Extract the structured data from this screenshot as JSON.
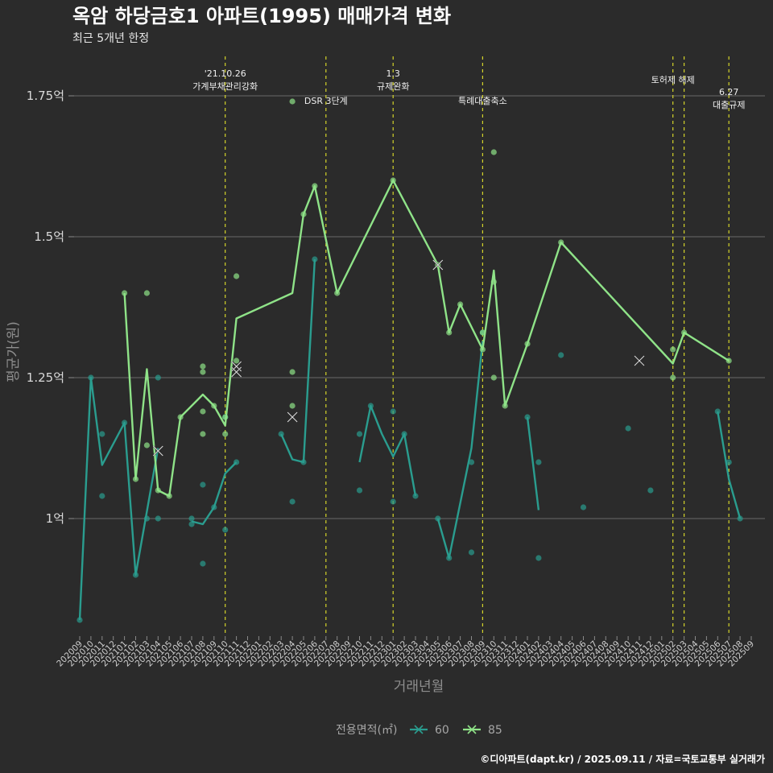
{
  "chart_data": {
    "type": "line",
    "title": "옥암 하당금호1 아파트(1995) 매매가격 변화",
    "subtitle": "최근 5개년 한정",
    "xlabel": "거래년월",
    "ylabel": "평균가(원)",
    "caption": "©디아파트(dapt.kr) / 2025.09.11 / 자료=국토교통부 실거래가",
    "legend_title": "전용면적(㎡)",
    "legend_position": "bottom",
    "grid": "horizontal",
    "ylim": [
      0.78,
      1.82
    ],
    "yticks": [
      {
        "value": 1.0,
        "label": "1억"
      },
      {
        "value": 1.25,
        "label": "1.25억"
      },
      {
        "value": 1.5,
        "label": "1.5억"
      },
      {
        "value": 1.75,
        "label": "1.75억"
      }
    ],
    "x_months": [
      "202009",
      "202010",
      "202011",
      "202012",
      "202101",
      "202102",
      "202103",
      "202104",
      "202105",
      "202106",
      "202107",
      "202108",
      "202109",
      "202110",
      "202111",
      "202112",
      "202201",
      "202202",
      "202203",
      "202204",
      "202205",
      "202206",
      "202207",
      "202208",
      "202209",
      "202210",
      "202211",
      "202212",
      "202301",
      "202302",
      "202303",
      "202304",
      "202305",
      "202306",
      "202307",
      "202308",
      "202309",
      "202310",
      "202311",
      "202312",
      "202401",
      "202402",
      "202403",
      "202404",
      "202405",
      "202406",
      "202407",
      "202408",
      "202409",
      "202410",
      "202411",
      "202412",
      "202501",
      "202502",
      "202503",
      "202504",
      "202505",
      "202506",
      "202507",
      "202508",
      "202509"
    ],
    "x_tick_labels": [
      "202009",
      "202010",
      "202011",
      "202012",
      "202101",
      "202102",
      "202103",
      "202104",
      "202105",
      "202106",
      "202107",
      "202108",
      "202109",
      "202110",
      "202111",
      "202112",
      "202201",
      "202202",
      "202203",
      "202204",
      "202205",
      "202206",
      "202207",
      "202208",
      "202209",
      "202210",
      "202211",
      "202212",
      "202301",
      "202302",
      "202303",
      "202304",
      "202305",
      "202306",
      "202307",
      "202308",
      "202309",
      "202310",
      "202311",
      "202312",
      "202401",
      "202402",
      "202403",
      "202404",
      "202405",
      "202406",
      "202407",
      "202408",
      "202409",
      "202410",
      "202411",
      "202412",
      "202501",
      "202502",
      "202503",
      "202504",
      "202505",
      "202506",
      "202507",
      "202508",
      "202509"
    ],
    "events": [
      {
        "x": "202110",
        "lines": [
          "'21.10.26",
          "가계부채관리강화"
        ],
        "position": "top"
      },
      {
        "x": "202207",
        "lines": [
          "DSR 3단계"
        ],
        "position": "lower"
      },
      {
        "x": "202301",
        "lines": [
          "1.3",
          "규제완화"
        ],
        "position": "top"
      },
      {
        "x": "202309",
        "lines": [
          "특례대출축소"
        ],
        "position": "lower"
      },
      {
        "x": "202502",
        "lines": [
          "토허제 해제"
        ],
        "position": "top"
      },
      {
        "x": "202503",
        "lines": [],
        "position": "top"
      },
      {
        "x": "202507",
        "lines": [
          "6.27",
          "대출규제"
        ],
        "position": "mid"
      }
    ],
    "series": [
      {
        "name": "60",
        "color": "#2a9d8f",
        "lines": [
          [
            [
              "202009",
              0.82
            ],
            [
              "202010",
              1.25
            ],
            [
              "202011",
              1.095
            ],
            [
              "202101",
              1.17
            ],
            [
              "202102",
              0.9
            ],
            [
              "202104",
              1.125
            ]
          ],
          [
            [
              "202106",
              1.17
            ]
          ],
          [
            [
              "202107",
              0.995
            ],
            [
              "202108",
              0.99
            ],
            [
              "202109",
              1.02
            ],
            [
              "202110",
              1.08
            ],
            [
              "202111",
              1.1
            ]
          ],
          [
            [
              "202203",
              1.15
            ],
            [
              "202204",
              1.105
            ],
            [
              "202205",
              1.1
            ],
            [
              "202206",
              1.46
            ]
          ],
          [
            [
              "202210",
              1.1
            ],
            [
              "202211",
              1.2
            ],
            [
              "202212",
              1.15
            ],
            [
              "202301",
              1.11
            ],
            [
              "202302",
              1.15
            ],
            [
              "202303",
              1.04
            ]
          ],
          [
            [
              "202305",
              1.0
            ],
            [
              "202306",
              0.93
            ],
            [
              "202308",
              1.125
            ],
            [
              "202309",
              1.315
            ]
          ],
          [
            [
              "202401",
              1.18
            ],
            [
              "202402",
              1.015
            ]
          ],
          [
            [
              "202506",
              1.19
            ],
            [
              "202507",
              1.07
            ],
            [
              "202508",
              1.0
            ]
          ]
        ],
        "points": [
          [
            "202009",
            0.82
          ],
          [
            "202010",
            1.25
          ],
          [
            "202011",
            1.15
          ],
          [
            "202011",
            1.04
          ],
          [
            "202101",
            1.17
          ],
          [
            "202102",
            0.9
          ],
          [
            "202103",
            1.0
          ],
          [
            "202104",
            1.25
          ],
          [
            "202104",
            1.0
          ],
          [
            "202107",
            1.0
          ],
          [
            "202107",
            0.99
          ],
          [
            "202108",
            1.06
          ],
          [
            "202108",
            0.92
          ],
          [
            "202109",
            1.02
          ],
          [
            "202110",
            1.18
          ],
          [
            "202110",
            0.98
          ],
          [
            "202111",
            1.1
          ],
          [
            "202203",
            1.15
          ],
          [
            "202204",
            1.03
          ],
          [
            "202205",
            1.1
          ],
          [
            "202206",
            1.46
          ],
          [
            "202210",
            1.15
          ],
          [
            "202210",
            1.05
          ],
          [
            "202211",
            1.2
          ],
          [
            "202301",
            1.19
          ],
          [
            "202301",
            1.03
          ],
          [
            "202302",
            1.15
          ],
          [
            "202303",
            1.04
          ],
          [
            "202305",
            1.0
          ],
          [
            "202306",
            0.93
          ],
          [
            "202308",
            1.1
          ],
          [
            "202308",
            0.94
          ],
          [
            "202309",
            1.33
          ],
          [
            "202401",
            1.18
          ],
          [
            "202402",
            1.1
          ],
          [
            "202402",
            0.93
          ],
          [
            "202404",
            1.29
          ],
          [
            "202406",
            1.02
          ],
          [
            "202410",
            1.16
          ],
          [
            "202412",
            1.05
          ],
          [
            "202506",
            1.19
          ],
          [
            "202507",
            1.1
          ],
          [
            "202508",
            1.0
          ]
        ],
        "markers": [
          [
            "202204",
            1.18
          ]
        ]
      },
      {
        "name": "85",
        "color": "#8fe388",
        "lines": [
          [
            [
              "202101",
              1.4
            ],
            [
              "202102",
              1.07
            ],
            [
              "202103",
              1.265
            ],
            [
              "202104",
              1.05
            ],
            [
              "202105",
              1.04
            ],
            [
              "202106",
              1.18
            ],
            [
              "202108",
              1.22
            ],
            [
              "202109",
              1.2
            ],
            [
              "202110",
              1.165
            ],
            [
              "202111",
              1.355
            ],
            [
              "202204",
              1.4
            ],
            [
              "202205",
              1.54
            ],
            [
              "202206",
              1.59
            ],
            [
              "202208",
              1.4
            ],
            [
              "202301",
              1.6
            ],
            [
              "202305",
              1.45
            ],
            [
              "202306",
              1.33
            ],
            [
              "202307",
              1.38
            ],
            [
              "202309",
              1.3
            ],
            [
              "202310",
              1.44
            ],
            [
              "202311",
              1.2
            ],
            [
              "202401",
              1.31
            ],
            [
              "202404",
              1.49
            ],
            [
              "202502",
              1.275
            ],
            [
              "202503",
              1.33
            ],
            [
              "202507",
              1.28
            ]
          ]
        ],
        "points": [
          [
            "202101",
            1.4
          ],
          [
            "202102",
            1.07
          ],
          [
            "202103",
            1.4
          ],
          [
            "202103",
            1.13
          ],
          [
            "202104",
            1.05
          ],
          [
            "202105",
            1.04
          ],
          [
            "202106",
            1.18
          ],
          [
            "202108",
            1.27
          ],
          [
            "202108",
            1.26
          ],
          [
            "202108",
            1.19
          ],
          [
            "202108",
            1.15
          ],
          [
            "202109",
            1.2
          ],
          [
            "202110",
            1.18
          ],
          [
            "202110",
            1.15
          ],
          [
            "202111",
            1.43
          ],
          [
            "202111",
            1.28
          ],
          [
            "202204",
            1.74
          ],
          [
            "202204",
            1.26
          ],
          [
            "202204",
            1.2
          ],
          [
            "202205",
            1.54
          ],
          [
            "202206",
            1.59
          ],
          [
            "202208",
            1.4
          ],
          [
            "202301",
            1.6
          ],
          [
            "202305",
            1.45
          ],
          [
            "202306",
            1.33
          ],
          [
            "202307",
            1.38
          ],
          [
            "202309",
            1.33
          ],
          [
            "202309",
            1.3
          ],
          [
            "202310",
            1.65
          ],
          [
            "202310",
            1.42
          ],
          [
            "202310",
            1.25
          ],
          [
            "202311",
            1.2
          ],
          [
            "202401",
            1.31
          ],
          [
            "202404",
            1.49
          ],
          [
            "202502",
            1.3
          ],
          [
            "202502",
            1.25
          ],
          [
            "202503",
            1.33
          ],
          [
            "202507",
            1.28
          ]
        ],
        "markers": [
          [
            "202104",
            1.12
          ],
          [
            "202111",
            1.27
          ],
          [
            "202111",
            1.26
          ],
          [
            "202305",
            1.45
          ],
          [
            "202411",
            1.28
          ]
        ]
      }
    ]
  }
}
